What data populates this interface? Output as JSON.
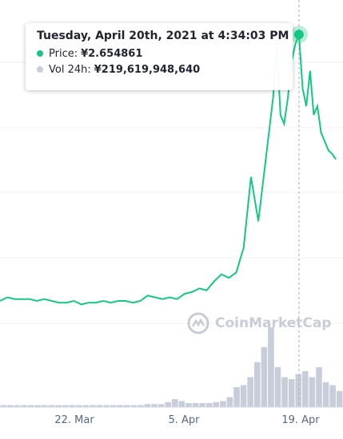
{
  "chart_data": {
    "type": "line",
    "x_tick_labels": [
      "22. Mar",
      "5. Apr",
      "19. Apr"
    ],
    "price_series": {
      "name": "Price",
      "x_days": [
        0,
        1,
        2,
        3,
        4,
        5,
        6,
        7,
        8,
        9,
        10,
        11,
        12,
        13,
        14,
        15,
        16,
        17,
        18,
        19,
        20,
        21,
        22,
        23,
        24,
        25,
        26,
        27,
        28,
        29,
        30,
        31,
        32,
        33,
        34,
        35,
        36,
        37,
        37.5,
        38,
        38.5,
        39,
        39.5,
        40,
        40.5,
        41,
        41.5,
        42,
        42.5,
        43,
        43.5,
        44,
        44.5,
        45,
        45.5
      ],
      "values": [
        1.15,
        1.17,
        1.16,
        1.16,
        1.16,
        1.15,
        1.16,
        1.15,
        1.14,
        1.14,
        1.15,
        1.13,
        1.14,
        1.14,
        1.15,
        1.14,
        1.15,
        1.15,
        1.14,
        1.15,
        1.18,
        1.17,
        1.16,
        1.17,
        1.16,
        1.19,
        1.2,
        1.22,
        1.21,
        1.26,
        1.3,
        1.28,
        1.31,
        1.45,
        1.85,
        1.6,
        1.95,
        2.3,
        2.6,
        2.2,
        2.15,
        2.3,
        2.5,
        2.6,
        2.654861,
        2.35,
        2.25,
        2.45,
        2.2,
        2.25,
        2.1,
        2.05,
        2.0,
        1.98,
        1.95
      ]
    },
    "volume_series": {
      "name": "Vol 24h",
      "values": [
        2,
        2,
        2,
        2,
        2,
        2,
        2,
        2,
        2,
        2,
        2,
        2,
        2,
        2,
        2,
        2,
        2,
        2,
        2,
        2,
        2,
        3,
        3,
        3,
        5,
        8,
        6,
        4,
        4,
        4,
        4,
        5,
        6,
        10,
        20,
        22,
        30,
        45,
        60,
        80,
        40,
        30,
        28,
        33,
        36,
        30,
        40,
        25,
        22,
        16
      ]
    },
    "ylim": [
      0.55,
      2.85
    ],
    "xlim": [
      0,
      45.6
    ],
    "grid": true,
    "colors": {
      "price_line": "#16c784",
      "volume_bar": "#c8cdda",
      "grid": "#eff2f5",
      "crosshair": "#a6b0c3"
    }
  },
  "tooltip": {
    "title": "Tuesday, April 20th, 2021 at 4:34:03 PM",
    "price_label": "Price:",
    "price_value": "¥2.654861",
    "vol_label": "Vol 24h:",
    "vol_value": "¥219,619,948,640",
    "highlight_day": 40.5
  },
  "watermark": {
    "text": "CoinMarketCap"
  }
}
